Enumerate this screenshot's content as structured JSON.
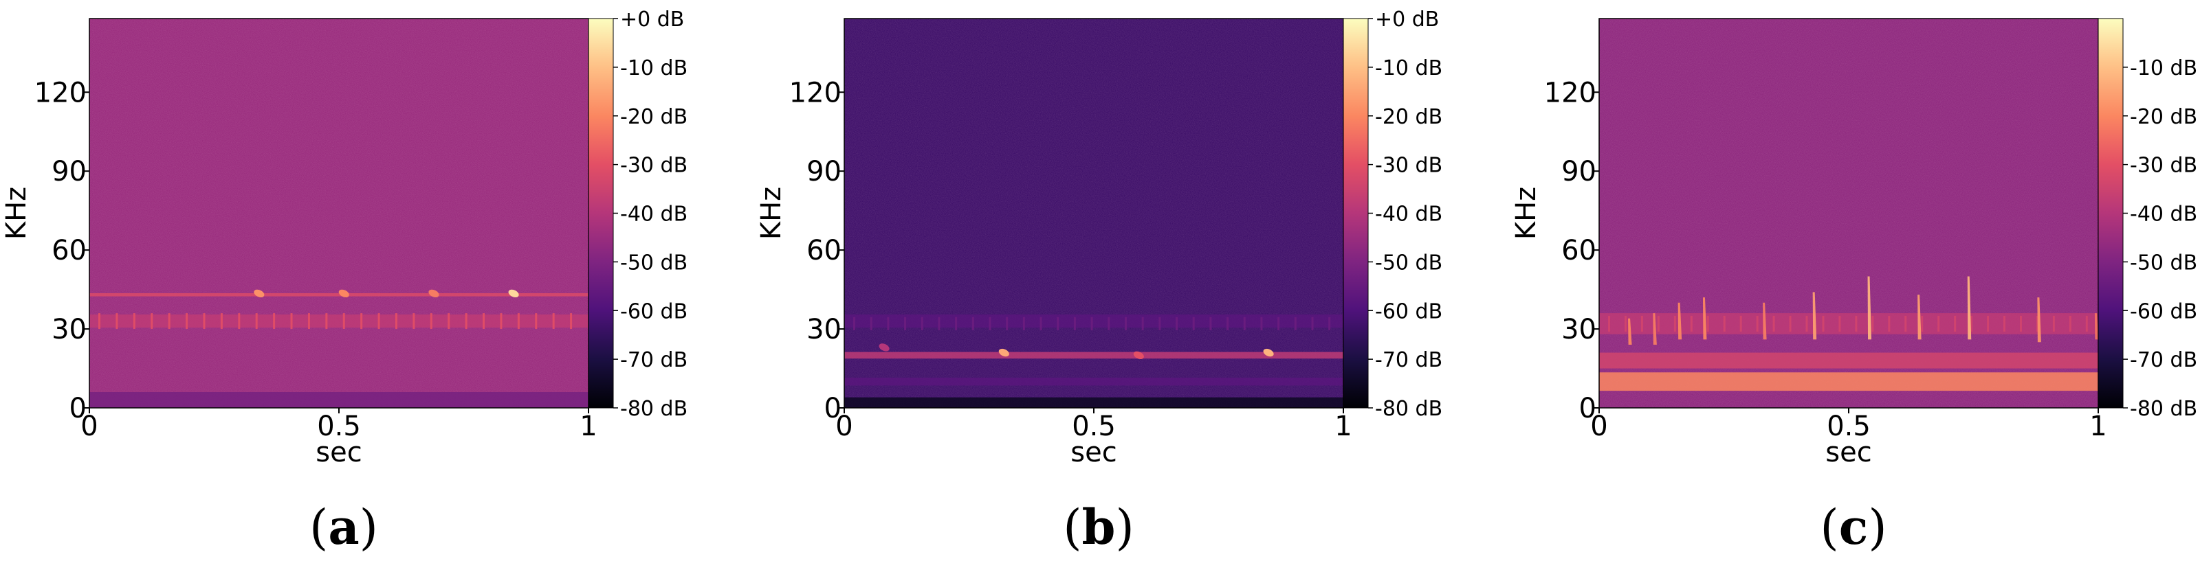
{
  "chart_data": [
    {
      "panel": "(a)",
      "panel_letter": "a",
      "type": "heatmap",
      "subtype": "spectrogram",
      "xlabel": "sec",
      "ylabel": "KHz",
      "xlim": [
        0,
        1
      ],
      "ylim": [
        0,
        148
      ],
      "x_ticks": [
        0,
        0.5,
        1
      ],
      "x_tick_labels": [
        "0",
        "0.5",
        "1"
      ],
      "y_ticks": [
        0,
        30,
        60,
        90,
        120
      ],
      "y_tick_labels": [
        "0",
        "30",
        "60",
        "90",
        "120"
      ],
      "colormap": "magma",
      "colorbar_range_db": [
        -80,
        0
      ],
      "colorbar_ticks": [
        0,
        -10,
        -20,
        -30,
        -40,
        -50,
        -60,
        -70,
        -80
      ],
      "colorbar_labels": [
        "+0 dB",
        "-10 dB",
        "-20 dB",
        "-30 dB",
        "-40 dB",
        "-50 dB",
        "-60 dB",
        "-70 dB",
        "-80 dB"
      ],
      "background_db": -45,
      "features": [
        {
          "kind": "band",
          "freq_khz": 43,
          "db": -32,
          "width_khz": 1.2
        },
        {
          "kind": "band",
          "freq_khz": 33,
          "db": -38,
          "width_khz": 5
        },
        {
          "kind": "band",
          "freq_khz": 3,
          "db": -52,
          "width_khz": 6
        },
        {
          "kind": "pulses",
          "freq_khz": 33,
          "start_sec": 0.02,
          "step_sec": 0.035,
          "count": 28,
          "height_khz": 6,
          "db": -30
        },
        {
          "kind": "blip",
          "t_sec": 0.34,
          "freq_khz": 43.5,
          "db": -18
        },
        {
          "kind": "blip",
          "t_sec": 0.51,
          "freq_khz": 43.5,
          "db": -20
        },
        {
          "kind": "blip",
          "t_sec": 0.69,
          "freq_khz": 43.5,
          "db": -22
        },
        {
          "kind": "blip",
          "t_sec": 0.85,
          "freq_khz": 43.5,
          "db": -6
        }
      ]
    },
    {
      "panel": "(b)",
      "panel_letter": "b",
      "type": "heatmap",
      "subtype": "spectrogram",
      "xlabel": "sec",
      "ylabel": "KHz",
      "xlim": [
        0,
        1
      ],
      "ylim": [
        0,
        148
      ],
      "x_ticks": [
        0,
        0.5,
        1
      ],
      "x_tick_labels": [
        "0",
        "0.5",
        "1"
      ],
      "y_ticks": [
        0,
        30,
        60,
        90,
        120
      ],
      "y_tick_labels": [
        "0",
        "30",
        "60",
        "90",
        "120"
      ],
      "colormap": "magma",
      "colorbar_range_db": [
        -80,
        0
      ],
      "colorbar_ticks": [
        0,
        -10,
        -20,
        -30,
        -40,
        -50,
        -60,
        -70,
        -80
      ],
      "colorbar_labels": [
        "+0 dB",
        "-10 dB",
        "-20 dB",
        "-30 dB",
        "-40 dB",
        "-50 dB",
        "-60 dB",
        "-70 dB",
        "-80 dB"
      ],
      "background_db": -63,
      "features": [
        {
          "kind": "band",
          "freq_khz": 20,
          "db": -38,
          "width_khz": 2.5
        },
        {
          "kind": "band",
          "freq_khz": 33,
          "db": -58,
          "width_khz": 5
        },
        {
          "kind": "band",
          "freq_khz": 10,
          "db": -58,
          "width_khz": 3
        },
        {
          "kind": "band",
          "freq_khz": 2,
          "db": -75,
          "width_khz": 4
        },
        {
          "kind": "pulses",
          "freq_khz": 32,
          "start_sec": 0.02,
          "step_sec": 0.034,
          "count": 29,
          "height_khz": 5,
          "db": -54
        },
        {
          "kind": "blip",
          "t_sec": 0.08,
          "freq_khz": 23,
          "db": -40
        },
        {
          "kind": "blip",
          "t_sec": 0.32,
          "freq_khz": 21,
          "db": -14
        },
        {
          "kind": "blip",
          "t_sec": 0.59,
          "freq_khz": 20,
          "db": -30
        },
        {
          "kind": "blip",
          "t_sec": 0.85,
          "freq_khz": 21,
          "db": -12
        }
      ]
    },
    {
      "panel": "(c)",
      "panel_letter": "c",
      "type": "heatmap",
      "subtype": "spectrogram",
      "xlabel": "sec",
      "ylabel": "KHz",
      "xlim": [
        0,
        1
      ],
      "ylim": [
        0,
        148
      ],
      "x_ticks": [
        0,
        0.5,
        1
      ],
      "x_tick_labels": [
        "0",
        "0.5",
        "1"
      ],
      "y_ticks": [
        0,
        30,
        60,
        90,
        120
      ],
      "y_tick_labels": [
        "0",
        "30",
        "60",
        "90",
        "120"
      ],
      "colormap": "magma",
      "colorbar_range_db": [
        -80,
        0
      ],
      "colorbar_ticks": [
        -10,
        -20,
        -30,
        -40,
        -50,
        -60,
        -70,
        -80
      ],
      "colorbar_labels": [
        "-10 dB",
        "-20 dB",
        "-30 dB",
        "-40 dB",
        "-50 dB",
        "-60 dB",
        "-70 dB",
        "-80 dB"
      ],
      "background_db": -47,
      "features": [
        {
          "kind": "band",
          "freq_khz": 10,
          "db": -20,
          "width_khz": 7
        },
        {
          "kind": "band",
          "freq_khz": 18,
          "db": -34,
          "width_khz": 6
        },
        {
          "kind": "band",
          "freq_khz": 32,
          "db": -38,
          "width_khz": 8
        },
        {
          "kind": "pulses",
          "freq_khz": 32,
          "start_sec": 0.02,
          "step_sec": 0.033,
          "count": 30,
          "height_khz": 6,
          "db": -34
        },
        {
          "kind": "chirp",
          "t_sec": 0.06,
          "f_low_khz": 24,
          "f_high_khz": 34,
          "db": -20
        },
        {
          "kind": "chirp",
          "t_sec": 0.11,
          "f_low_khz": 24,
          "f_high_khz": 36,
          "db": -22
        },
        {
          "kind": "chirp",
          "t_sec": 0.16,
          "f_low_khz": 26,
          "f_high_khz": 40,
          "db": -20
        },
        {
          "kind": "chirp",
          "t_sec": 0.21,
          "f_low_khz": 26,
          "f_high_khz": 42,
          "db": -20
        },
        {
          "kind": "chirp",
          "t_sec": 0.33,
          "f_low_khz": 26,
          "f_high_khz": 40,
          "db": -22
        },
        {
          "kind": "chirp",
          "t_sec": 0.43,
          "f_low_khz": 26,
          "f_high_khz": 44,
          "db": -16
        },
        {
          "kind": "chirp",
          "t_sec": 0.54,
          "f_low_khz": 26,
          "f_high_khz": 50,
          "db": -12
        },
        {
          "kind": "chirp",
          "t_sec": 0.64,
          "f_low_khz": 26,
          "f_high_khz": 43,
          "db": -16
        },
        {
          "kind": "chirp",
          "t_sec": 0.74,
          "f_low_khz": 26,
          "f_high_khz": 50,
          "db": -12
        },
        {
          "kind": "chirp",
          "t_sec": 0.88,
          "f_low_khz": 25,
          "f_high_khz": 42,
          "db": -18
        },
        {
          "kind": "chirp",
          "t_sec": 0.995,
          "f_low_khz": 26,
          "f_high_khz": 36,
          "db": -24
        }
      ]
    }
  ]
}
